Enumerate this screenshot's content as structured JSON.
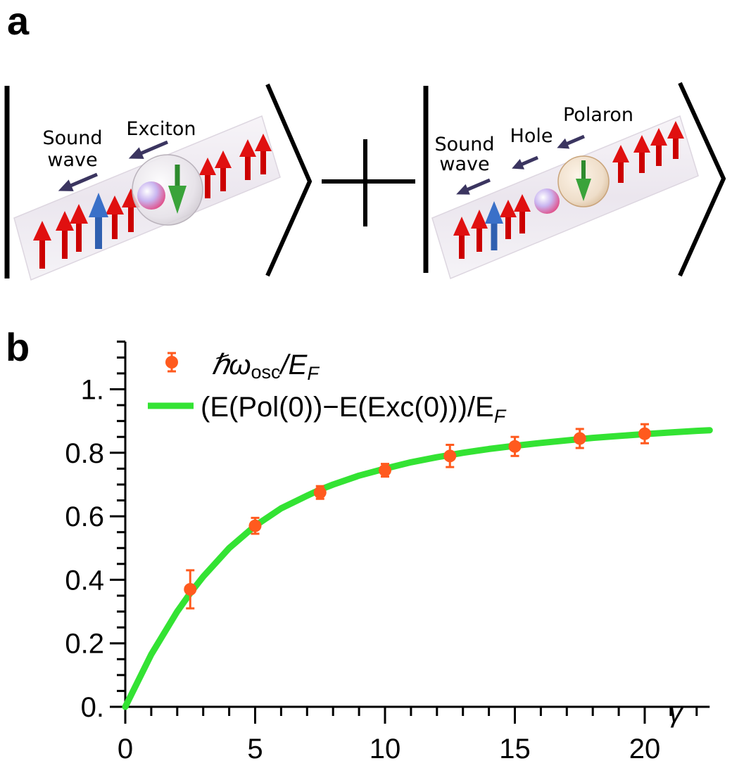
{
  "panel_a": {
    "letter": "a",
    "ket1": {
      "label_sound": [
        "Sound",
        "wave"
      ],
      "label_exciton": "Exciton"
    },
    "ket2": {
      "label_sound": [
        "Sound",
        "wave"
      ],
      "label_hole": "Hole",
      "label_polaron": "Polaron"
    },
    "colors": {
      "spin_up": "#e01010",
      "spin_flipped": "#3a70c8",
      "spin_down": "#3aa33a",
      "tube": "#eeeaf2"
    }
  },
  "panel_b": {
    "letter": "b",
    "x_axis_symbol": "γ",
    "legend": {
      "points_label": {
        "prefix": "ℏω",
        "sub": "osc",
        "mid": "/E",
        "sub2": "F"
      },
      "curve_label": {
        "text": "(E(Pol(0))−E(Exc(0)))/E",
        "sub": "F"
      }
    }
  },
  "chart_data": {
    "type": "scatter",
    "xlabel": "γ",
    "ylabel": "",
    "xlim": [
      0,
      22.5
    ],
    "ylim": [
      0,
      1.15
    ],
    "x_ticks": [
      0,
      5,
      10,
      15,
      20
    ],
    "x_tick_labels": [
      "0",
      "5",
      "10",
      "15",
      "20"
    ],
    "y_ticks": [
      0,
      0.2,
      0.4,
      0.6,
      0.8,
      1.0
    ],
    "y_tick_labels": [
      "0.",
      "0.2",
      "0.4",
      "0.6",
      "0.8",
      "1."
    ],
    "grid": false,
    "legend_position": "top-left",
    "series": [
      {
        "name": "ℏω_osc/E_F",
        "kind": "points_with_errorbars",
        "color": "#ff5a1e",
        "x": [
          2.5,
          5,
          7.5,
          10,
          12.5,
          15,
          17.5,
          20
        ],
        "y": [
          0.37,
          0.57,
          0.675,
          0.745,
          0.79,
          0.82,
          0.845,
          0.86
        ],
        "err": [
          0.06,
          0.025,
          0.02,
          0.02,
          0.035,
          0.03,
          0.03,
          0.03
        ]
      },
      {
        "name": "(E(Pol(0))−E(Exc(0)))/E_F",
        "kind": "line",
        "color": "#33e333",
        "x": [
          0,
          1,
          2,
          2.5,
          3,
          4,
          5,
          6,
          7,
          7.5,
          8,
          9,
          10,
          11,
          12,
          12.5,
          13,
          14,
          15,
          16,
          17,
          17.5,
          18,
          19,
          20,
          21,
          22,
          22.5
        ],
        "y": [
          0,
          0.165,
          0.3,
          0.358,
          0.41,
          0.5,
          0.57,
          0.625,
          0.665,
          0.684,
          0.7,
          0.728,
          0.75,
          0.77,
          0.786,
          0.793,
          0.8,
          0.812,
          0.822,
          0.831,
          0.839,
          0.843,
          0.847,
          0.853,
          0.859,
          0.864,
          0.869,
          0.871
        ]
      }
    ]
  }
}
